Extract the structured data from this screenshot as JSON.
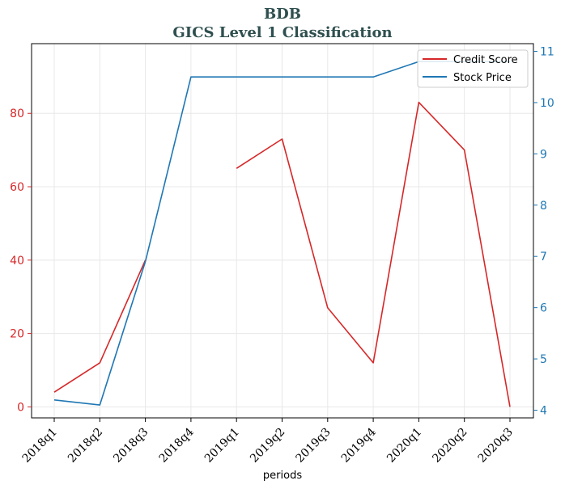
{
  "chart_data": {
    "type": "line",
    "title_line1": "BDB",
    "title_line2": "GICS Level 1 Classification",
    "xlabel": "periods",
    "categories": [
      "2018q1",
      "2018q2",
      "2018q3",
      "2018q4",
      "2019q1",
      "2019q2",
      "2019q3",
      "2019q4",
      "2020q1",
      "2020q2",
      "2020q3"
    ],
    "series": [
      {
        "name": "Credit Score",
        "axis": "left",
        "color": "#d62728",
        "values": [
          4,
          12,
          40,
          null,
          65,
          73,
          27,
          12,
          83,
          70,
          0
        ]
      },
      {
        "name": "Stock Price",
        "axis": "right",
        "color": "#1f77b4",
        "values": [
          4.2,
          4.1,
          6.9,
          10.5,
          10.5,
          10.5,
          10.5,
          10.5,
          10.8,
          10.8,
          10.8
        ]
      }
    ],
    "y_left": {
      "ticks": [
        0,
        20,
        40,
        60,
        80
      ],
      "range": [
        -3,
        99
      ],
      "color": "#d62728"
    },
    "y_right": {
      "ticks": [
        4,
        5,
        6,
        7,
        8,
        9,
        10,
        11
      ],
      "range": [
        3.85,
        11.15
      ],
      "color": "#1f77b4"
    },
    "grid": true,
    "legend_position": "top-right"
  }
}
